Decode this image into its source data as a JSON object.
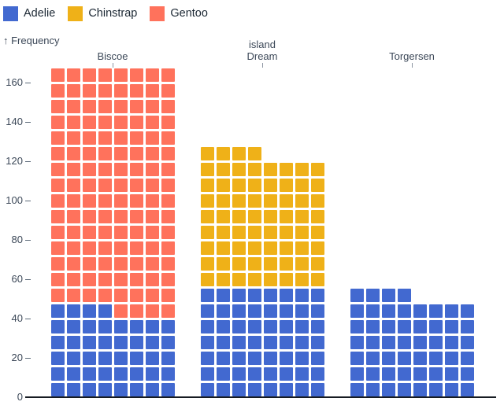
{
  "legend": {
    "items": [
      {
        "label": "Adelie",
        "color": "#4269d0"
      },
      {
        "label": "Chinstrap",
        "color": "#efb118"
      },
      {
        "label": "Gentoo",
        "color": "#ff725c"
      }
    ]
  },
  "axis": {
    "frequency_label": "↑ Frequency"
  },
  "chart_data": {
    "type": "bar",
    "subtype": "waffle-stacked",
    "title": "",
    "xlabel": "island",
    "ylabel": "Frequency",
    "categories": [
      "Biscoe",
      "Dream",
      "Torgersen"
    ],
    "series": [
      {
        "name": "Adelie",
        "color": "#4269d0",
        "values": [
          44,
          56,
          52
        ]
      },
      {
        "name": "Chinstrap",
        "color": "#efb118",
        "values": [
          0,
          68,
          0
        ]
      },
      {
        "name": "Gentoo",
        "color": "#ff725c",
        "values": [
          124,
          0,
          0
        ]
      }
    ],
    "totals": [
      168,
      124,
      52
    ],
    "y_ticks": [
      0,
      20,
      40,
      60,
      80,
      100,
      120,
      140,
      160
    ],
    "ylim": [
      0,
      168
    ],
    "unit_per_cell": 1,
    "cells_per_row": 8,
    "legend_position": "top-left",
    "grid": false
  }
}
